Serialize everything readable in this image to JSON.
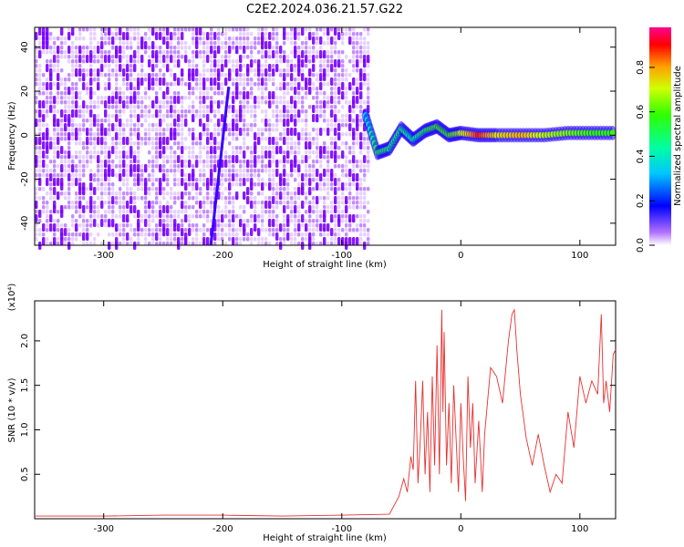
{
  "title": "C2E2.2024.036.21.57.G22",
  "colorbar": {
    "label": "Normalized spectral amplitude",
    "ticks": [
      "0.0",
      "0.2",
      "0.4",
      "0.6",
      "0.8"
    ],
    "tick_values": [
      0.0,
      0.2,
      0.4,
      0.6,
      0.8
    ],
    "range": [
      0.0,
      0.98
    ]
  },
  "chart_data": [
    {
      "type": "heatmap",
      "xlabel": "Height of straight line (km)",
      "ylabel": "Frequency (Hz)",
      "xlim": [
        -358,
        130
      ],
      "ylim": [
        -50,
        49
      ],
      "x_ticks": [
        -300,
        -200,
        -100,
        0,
        100
      ],
      "x_tick_labels": [
        "-300",
        "-200",
        "-100",
        "0",
        "100"
      ],
      "y_ticks": [
        -40,
        -20,
        0,
        20,
        40
      ],
      "y_tick_labels": [
        "-40",
        "-20",
        "0",
        "20",
        "40"
      ],
      "noise_region": {
        "x_range": [
          -358,
          -78
        ],
        "amplitude": "0.1-0.3",
        "color": "#7a00ff"
      },
      "streak": {
        "x_start": -210,
        "y_start": -50,
        "x_end": -195,
        "y_end": 22
      },
      "signal_band": [
        {
          "x": -80,
          "y": 9,
          "amp": 0.35
        },
        {
          "x": -70,
          "y": -8,
          "amp": 0.55
        },
        {
          "x": -60,
          "y": -6,
          "amp": 0.5
        },
        {
          "x": -50,
          "y": 3,
          "amp": 0.5
        },
        {
          "x": -40,
          "y": -2,
          "amp": 0.45
        },
        {
          "x": -30,
          "y": 2,
          "amp": 0.55
        },
        {
          "x": -20,
          "y": 4,
          "amp": 0.6
        },
        {
          "x": -10,
          "y": 0,
          "amp": 0.6
        },
        {
          "x": 0,
          "y": 1,
          "amp": 0.7
        },
        {
          "x": 15,
          "y": 0,
          "amp": 0.9
        },
        {
          "x": 30,
          "y": 0,
          "amp": 0.75
        },
        {
          "x": 50,
          "y": 0,
          "amp": 0.8
        },
        {
          "x": 70,
          "y": 0,
          "amp": 0.7
        },
        {
          "x": 90,
          "y": 1,
          "amp": 0.65
        },
        {
          "x": 110,
          "y": 1,
          "amp": 0.6
        },
        {
          "x": 130,
          "y": 1,
          "amp": 0.6
        }
      ]
    },
    {
      "type": "line",
      "xlabel": "Height of straight line (km)",
      "ylabel": "SNR (10 * v/v)",
      "y_scale_label": "(x10⁴)",
      "xlim": [
        -358,
        130
      ],
      "ylim": [
        0,
        2.45
      ],
      "x_ticks": [
        -300,
        -200,
        -100,
        0,
        100
      ],
      "x_tick_labels": [
        "-300",
        "-200",
        "-100",
        "0",
        "100"
      ],
      "y_ticks": [
        0.5,
        1.0,
        1.5,
        2.0
      ],
      "y_tick_labels": [
        "0.5",
        "1.0",
        "1.5",
        "2.0"
      ],
      "series": [
        {
          "color": "#e63030",
          "x": [
            -358,
            -300,
            -250,
            -200,
            -150,
            -100,
            -60,
            -52,
            -48,
            -45,
            -42,
            -40,
            -38,
            -36,
            -34,
            -32,
            -30,
            -28,
            -26,
            -24,
            -22,
            -20,
            -18,
            -16,
            -15,
            -14,
            -12,
            -10,
            -8,
            -6,
            -4,
            -2,
            0,
            2,
            4,
            6,
            8,
            10,
            12,
            15,
            18,
            20,
            25,
            30,
            35,
            40,
            43,
            45,
            47,
            50,
            55,
            60,
            65,
            70,
            75,
            80,
            85,
            90,
            95,
            100,
            105,
            110,
            115,
            118,
            120,
            122,
            125,
            128,
            130
          ],
          "y": [
            0.03,
            0.03,
            0.04,
            0.04,
            0.03,
            0.04,
            0.05,
            0.25,
            0.45,
            0.3,
            0.7,
            0.55,
            1.55,
            0.4,
            0.9,
            1.55,
            0.5,
            1.2,
            0.3,
            1.6,
            0.6,
            1.95,
            0.5,
            2.35,
            1.2,
            2.1,
            0.6,
            1.3,
            0.4,
            1.5,
            0.9,
            0.3,
            1.3,
            0.7,
            0.2,
            1.6,
            0.8,
            1.3,
            0.4,
            1.1,
            0.3,
            0.95,
            1.7,
            1.6,
            1.3,
            2.0,
            2.3,
            2.35,
            1.9,
            1.4,
            0.9,
            0.6,
            0.95,
            0.6,
            0.3,
            0.5,
            0.4,
            1.2,
            0.8,
            1.6,
            1.3,
            1.55,
            1.4,
            2.3,
            1.3,
            1.55,
            1.2,
            1.85,
            1.9
          ]
        }
      ]
    }
  ]
}
